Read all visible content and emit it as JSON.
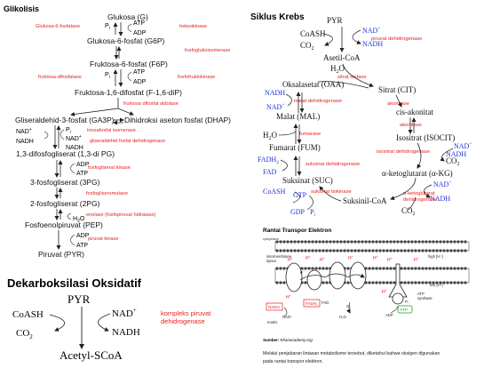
{
  "glycolysis": {
    "title": "Glikolisis",
    "glucose": "Glukosa (G)",
    "g6p": "Glukosa-6-fosfat (G6P)",
    "f6p": "Fruktosa-6-fosfat (F6P)",
    "f16dp": "Fruktosa-1,6-difosfat (F-1,6-diP)",
    "ga3p": "Gliseraldehid-3-fosfat (GA3P)",
    "dhap": "Dihidroksi aseton fosfat (DHAP)",
    "bpg": "1,3-difosfogliserat (1,3-di PG)",
    "pg3": "3-fosfogliserat (3PG)",
    "pg2": "2-fosfogliserat (2PG)",
    "pep": "Fosfoenolpiruvat (PEP)",
    "pyr": "Piruvat (PYR)",
    "pi": "P",
    "pi_sub": "i",
    "atp": "ATP",
    "adp": "ADP",
    "nad": "NAD",
    "nadh": "NADH",
    "h2o": "H",
    "h2o_2": "2",
    "h2o_o": "O",
    "plus": "+",
    "enzymes": {
      "g6pase": "Glukosa-6-fosfatase",
      "hexokinase": "heksokinase",
      "pgi": "fosfoglukoisomerase",
      "f16pase": "fruktosa-difosfatase",
      "pfk": "fosfofruktokinase",
      "aldolase": "fruktosa difosfat aldolase",
      "tpi": "triosafosfat isomerase",
      "gapdh": "gliseraldehid fosfat dehidrogenase",
      "pgk": "fosfogliserat kinase",
      "pgm": "fosfogliseromutase",
      "enolase": "enolase (fosfopiruvat hidratase)",
      "pk": "piruvat kinase"
    }
  },
  "oxidative_decarboxylation": {
    "title": "Dekarboksilasi Oksidatif",
    "pyr": "PYR",
    "coash": "CoASH",
    "nad": "NAD",
    "plus": "+",
    "co2": "CO",
    "co2_sub": "2",
    "nadh": "NADH",
    "acetyl_scoa": "Acetyl-SCoA",
    "enzyme_line1": "kompleks piruvat",
    "enzyme_line2": "dehidrogenase"
  },
  "krebs": {
    "title": "Siklus Krebs",
    "pyr": "PYR",
    "coash": "CoASH",
    "nad": "NAD",
    "plus": "+",
    "co2": "CO",
    "co2_sub": "2",
    "nadh": "NADH",
    "pdh": "piruvat dehidrogenase",
    "acetyl_coa": "Asetil-CoA",
    "h2o": "H",
    "h2o_2": "2",
    "h2o_o": "O",
    "oaa": "Oksalasetat (OAA)",
    "cit": "Sitrat (CIT)",
    "citrate_synthase": "sitrat sintase",
    "mal": "Malat (MAL)",
    "mdh": "malat dehidrogenase",
    "cis_aconitate": "cis-akonitat",
    "aconitase": "akonitase",
    "fumarase": "fumarase",
    "fum": "Fumarat (FUM)",
    "isocit": "Isositrat (ISOCIT)",
    "idh": "isositrat dehidrogenase",
    "fadh2": "FADH",
    "fadh2_sub": "2",
    "fad": "FAD",
    "sdh": "suksinat dehidrogenase",
    "akg": "α-ketoglutarat (α-KG)",
    "suc": "Suksinat (SUC)",
    "sucl": "suksinat tiokinase",
    "akgdh1": "α-ketoglutarat",
    "akgdh2": "dehidrogenase",
    "gtp": "GTP",
    "gdp": "GDP",
    "pi": "P",
    "pi_sub": "i",
    "succoa": "Suksinil-CoA"
  },
  "etc": {
    "title": "Rantai Transpor Elektron",
    "cytoplasm": "cytoplasm",
    "intermembrane": "intermembrane",
    "space": "space",
    "matrix": "matrix",
    "high_h": "high [H⁺]",
    "low_h": "low [H⁺]",
    "h": "H",
    "hplus": "+",
    "e": "e",
    "nadh": "NADH",
    "fadh2": "FADH₂",
    "fad": "FAD",
    "nad": "NAD⁺",
    "o2": "O₂",
    "h2o": "H₂O",
    "adp": "ADP",
    "atp": "ATP",
    "pi": "Pᵢ",
    "atp_synthase1": "ATP",
    "atp_synthase2": "synthase",
    "source_label": "Sumber:",
    "source_value": "Khanacademy.org",
    "caption_line1": "Melalui penjabaran lintasan metabolisme tersebut, diketahui bahwa oksigen digunakan",
    "caption_line2": "pada rantai transpor elektron."
  },
  "colors": {
    "enzyme": "#e8201f",
    "cofactor": "#1f2fd8",
    "text": "#111111",
    "gtp_green": "#2a9a2a"
  }
}
